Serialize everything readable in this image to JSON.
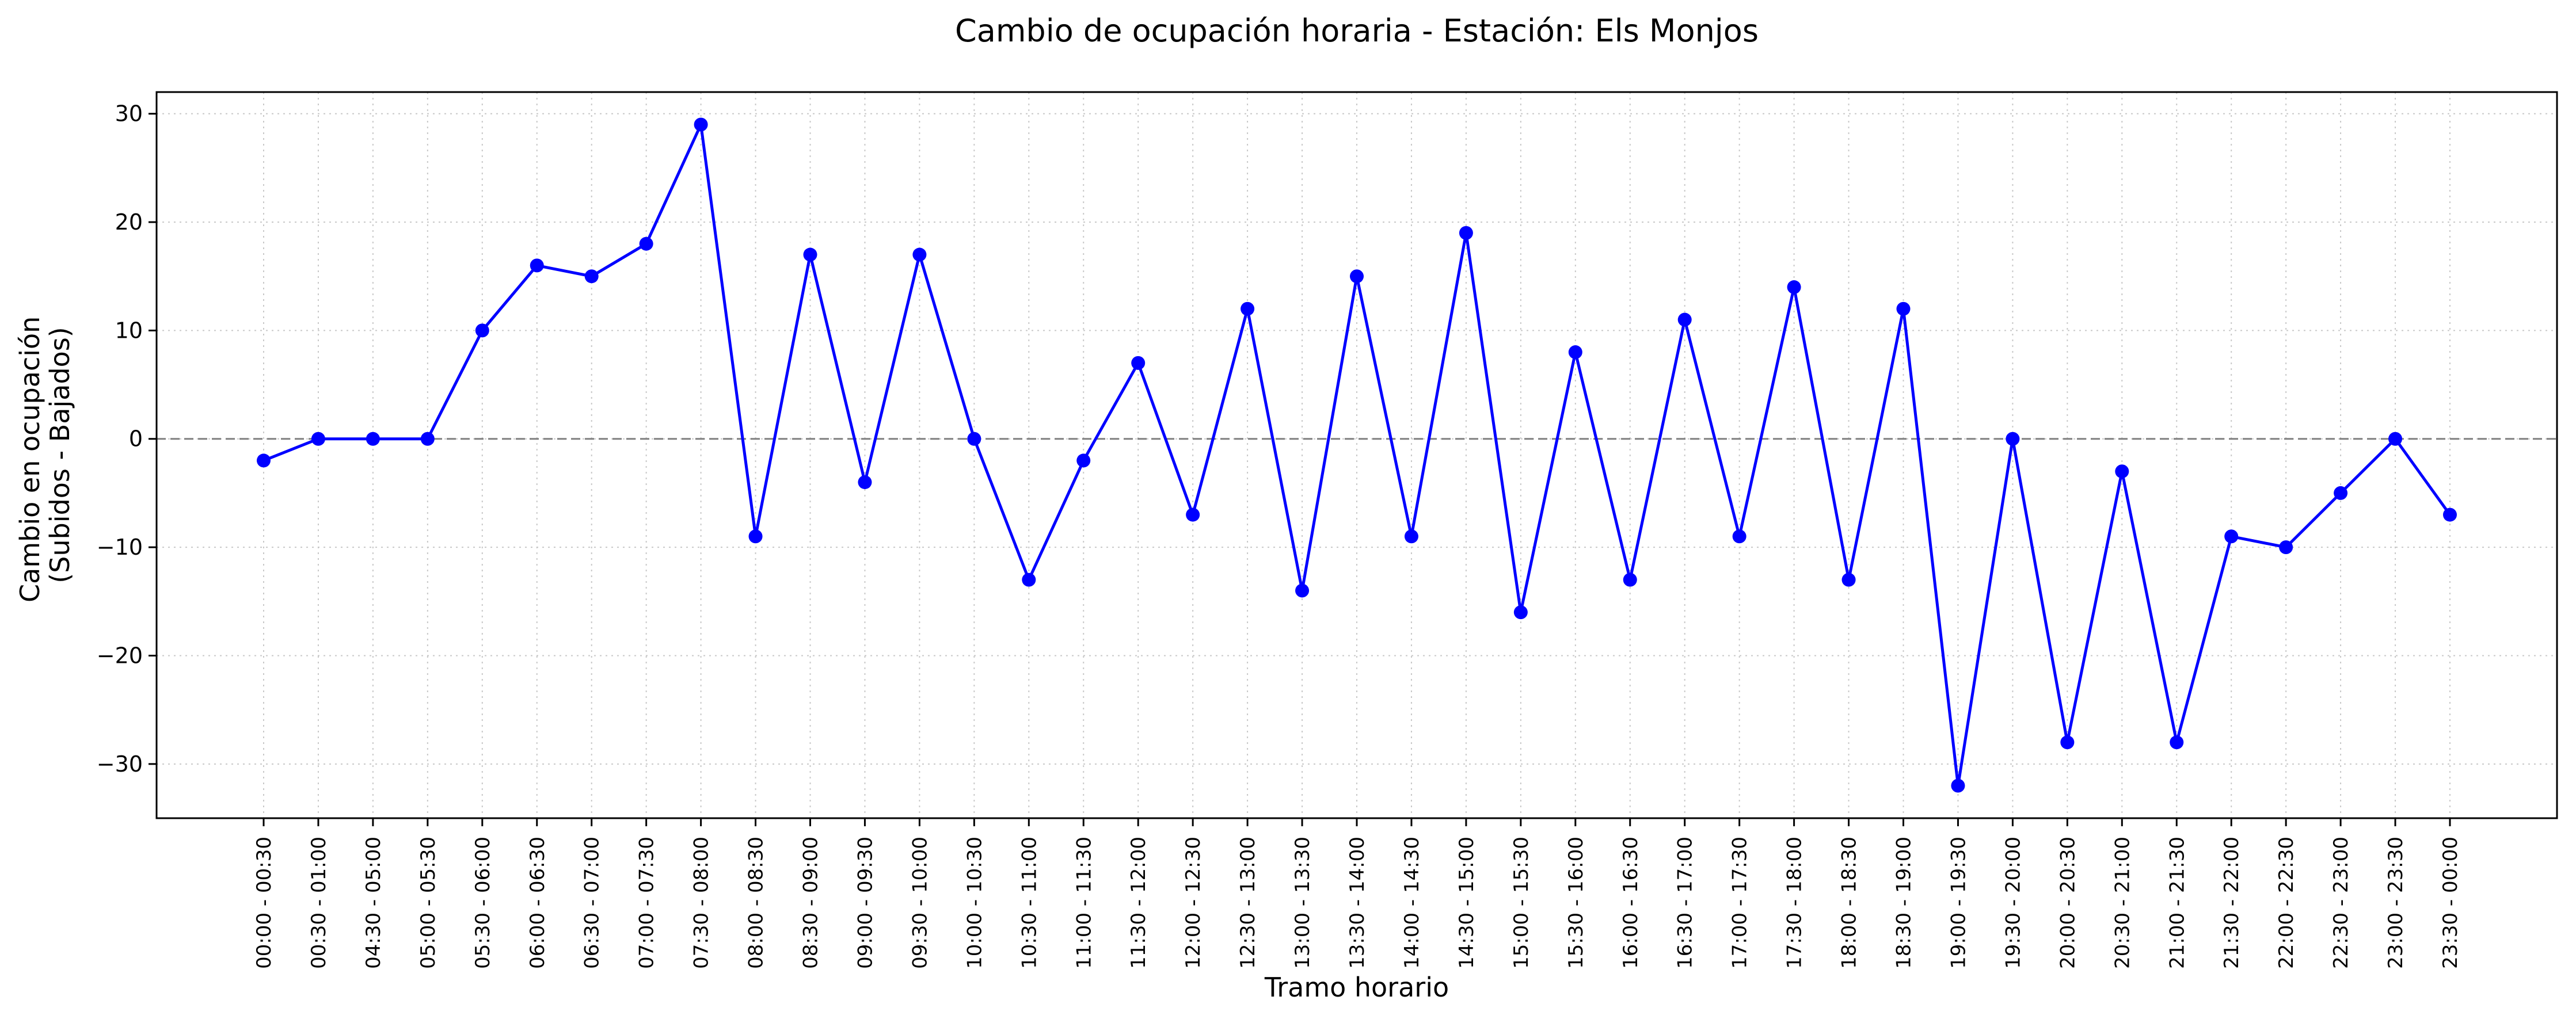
{
  "chart_data": {
    "type": "line",
    "title": "Cambio de ocupación horaria - Estación: Els Monjos",
    "xlabel": "Tramo horario",
    "ylabel": [
      "Cambio en ocupación",
      "(Subidos - Bajados)"
    ],
    "categories": [
      "00:00 - 00:30",
      "00:30 - 01:00",
      "04:30 - 05:00",
      "05:00 - 05:30",
      "05:30 - 06:00",
      "06:00 - 06:30",
      "06:30 - 07:00",
      "07:00 - 07:30",
      "07:30 - 08:00",
      "08:00 - 08:30",
      "08:30 - 09:00",
      "09:00 - 09:30",
      "09:30 - 10:00",
      "10:00 - 10:30",
      "10:30 - 11:00",
      "11:00 - 11:30",
      "11:30 - 12:00",
      "12:00 - 12:30",
      "12:30 - 13:00",
      "13:00 - 13:30",
      "13:30 - 14:00",
      "14:00 - 14:30",
      "14:30 - 15:00",
      "15:00 - 15:30",
      "15:30 - 16:00",
      "16:00 - 16:30",
      "16:30 - 17:00",
      "17:00 - 17:30",
      "17:30 - 18:00",
      "18:00 - 18:30",
      "18:30 - 19:00",
      "19:00 - 19:30",
      "19:30 - 20:00",
      "20:00 - 20:30",
      "20:30 - 21:00",
      "21:00 - 21:30",
      "21:30 - 22:00",
      "22:00 - 22:30",
      "22:30 - 23:00",
      "23:00 - 23:30",
      "23:30 - 00:00"
    ],
    "series": [
      {
        "values": [
          -2,
          0,
          0,
          0,
          10,
          16,
          15,
          18,
          29,
          -9,
          17,
          -4,
          17,
          0,
          -13,
          -2,
          7,
          -7,
          12,
          -14,
          15,
          -9,
          19,
          -16,
          8,
          -13,
          11,
          -9,
          14,
          -13,
          12,
          -32,
          0,
          -28,
          -3,
          -28,
          -9,
          -10,
          -5,
          0,
          -7
        ],
        "color": "#0000ff",
        "marker": "circle"
      }
    ],
    "ylim": [
      -35,
      32
    ],
    "yticks": [
      -30,
      -20,
      -10,
      0,
      10,
      20,
      30
    ],
    "ytick_labels": [
      "−30",
      "−20",
      "−10",
      "0",
      "10",
      "20",
      "30"
    ],
    "reference_line": {
      "y": 0,
      "style": "dashed",
      "color": "#808080"
    },
    "grid": true,
    "grid_style": "dotted",
    "legend": false
  }
}
